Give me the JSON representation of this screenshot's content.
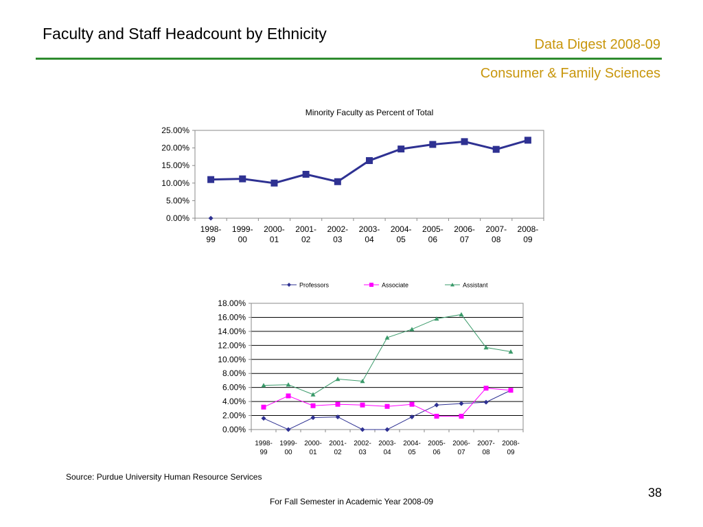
{
  "header": {
    "title": "Faculty and Staff Headcount by Ethnicity",
    "digest": "Data Digest 2008-09",
    "department": "Consumer & Family Sciences"
  },
  "footer": {
    "source": "Source:  Purdue University Human Resource Services",
    "page_number": "38",
    "note": "For Fall Semester in Academic Year 2008-09"
  },
  "colors": {
    "accent_gold": "#c8960c",
    "rule_green": "#2e8b2e",
    "navy": "#2e3192",
    "magenta": "#ff00ff",
    "green": "#3a9a6a"
  },
  "chart_data": [
    {
      "type": "line",
      "title": "Minority Faculty as Percent of Total",
      "categories_top": [
        "1998-",
        "1999-",
        "2000-",
        "2001-",
        "2002-",
        "2003-",
        "2004-",
        "2005-",
        "2006-",
        "2007-",
        "2008-"
      ],
      "categories_bottom": [
        "99",
        "00",
        "01",
        "02",
        "03",
        "04",
        "05",
        "06",
        "07",
        "08",
        "09"
      ],
      "ylim": [
        0,
        25
      ],
      "yticks": [
        "0.00%",
        "5.00%",
        "10.00%",
        "15.00%",
        "20.00%",
        "25.00%"
      ],
      "grid": false,
      "series": [
        {
          "values": [
            11.0,
            11.2,
            10.0,
            12.5,
            10.4,
            16.4,
            19.7,
            21.0,
            21.8,
            19.6,
            22.2
          ]
        }
      ],
      "extra_point": {
        "category_index": 0,
        "value": 0
      }
    },
    {
      "type": "line",
      "categories_top": [
        "1998-",
        "1999-",
        "2000-",
        "2001-",
        "2002-",
        "2003-",
        "2004-",
        "2005-",
        "2006-",
        "2007-",
        "2008-"
      ],
      "categories_bottom": [
        "99",
        "00",
        "01",
        "02",
        "03",
        "04",
        "05",
        "06",
        "07",
        "08",
        "09"
      ],
      "ylim": [
        0,
        18
      ],
      "yticks": [
        "0.00%",
        "2.00%",
        "4.00%",
        "6.00%",
        "8.00%",
        "10.00%",
        "12.00%",
        "14.00%",
        "16.00%",
        "18.00%"
      ],
      "grid": true,
      "legend_placement": "top",
      "series": [
        {
          "name": "Professors",
          "values": [
            1.6,
            0.0,
            1.7,
            1.8,
            0.0,
            0.0,
            1.8,
            3.5,
            3.7,
            3.9,
            5.6
          ]
        },
        {
          "name": "Associate",
          "values": [
            3.2,
            4.8,
            3.4,
            3.6,
            3.5,
            3.3,
            3.6,
            1.9,
            1.9,
            5.9,
            5.6
          ]
        },
        {
          "name": "Assistant",
          "values": [
            6.3,
            6.4,
            5.0,
            7.2,
            6.9,
            13.1,
            14.3,
            15.8,
            16.4,
            11.7,
            11.1
          ]
        }
      ]
    }
  ]
}
